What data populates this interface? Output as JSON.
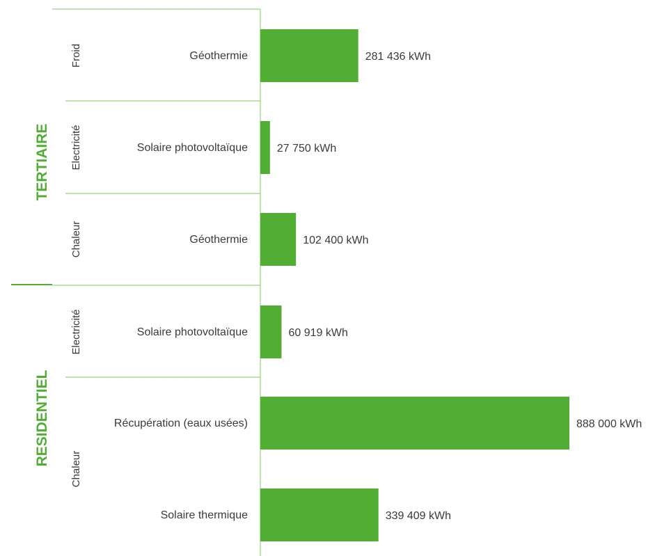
{
  "colors": {
    "bar": "#52ad34",
    "rule": "#7ccb61",
    "sector_text": "#52ad34",
    "text": "#3a3a3a"
  },
  "chart_data": {
    "type": "bar",
    "orientation": "horizontal",
    "unit": "kWh",
    "sectors": [
      {
        "label": "TERTIAIRE"
      },
      {
        "label": "RESIDENTIEL"
      }
    ],
    "categories": [
      {
        "label": "Froid"
      },
      {
        "label": "Electricité"
      },
      {
        "label": "Chaleur"
      },
      {
        "label": "Electricité"
      },
      {
        "label": "Chaleur"
      }
    ],
    "bars": [
      {
        "source": "Géothermie",
        "value": 281436,
        "value_label": "281 436 kWh"
      },
      {
        "source": "Solaire photovoltaïque",
        "value": 27750,
        "value_label": "27 750 kWh"
      },
      {
        "source": "Géothermie",
        "value": 102400,
        "value_label": "102 400 kWh"
      },
      {
        "source": "Solaire photovoltaïque",
        "value": 60919,
        "value_label": "60 919 kWh"
      },
      {
        "source": "Récupération (eaux usées)",
        "value": 888000,
        "value_label": "888 000 kWh"
      },
      {
        "source": "Solaire thermique",
        "value": 339409,
        "value_label": "339 409 kWh"
      }
    ]
  }
}
